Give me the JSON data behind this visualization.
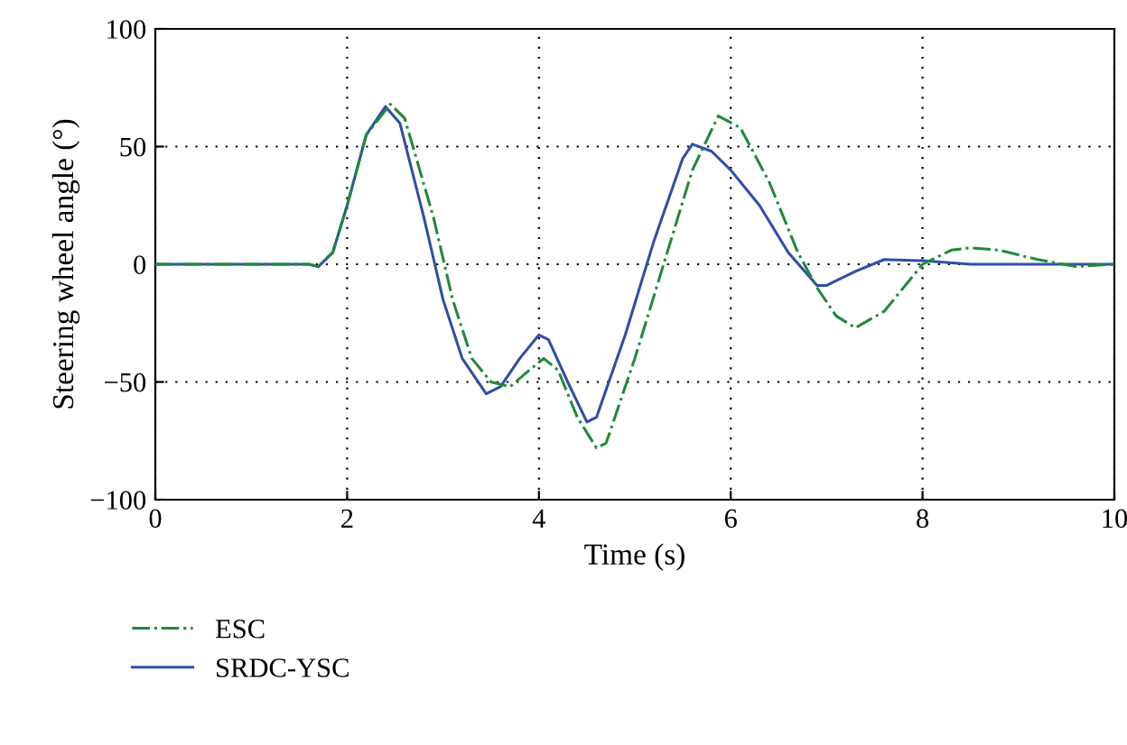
{
  "chart_data": {
    "type": "line",
    "xlabel": "Time (s)",
    "ylabel": "Steering wheel angle (°)",
    "xlim": [
      0,
      10
    ],
    "ylim": [
      -100,
      100
    ],
    "xticks": [
      0,
      2,
      4,
      6,
      8,
      10
    ],
    "yticks": [
      -100,
      -50,
      0,
      50,
      100
    ],
    "grid": true,
    "legend": "bottom left",
    "marker": "none",
    "series": [
      {
        "name": "ESC",
        "color": "#1f8a3a",
        "line_style": "dashdot",
        "x": [
          0,
          1.0,
          1.6,
          1.7,
          1.85,
          2.0,
          2.2,
          2.45,
          2.6,
          2.9,
          3.1,
          3.3,
          3.5,
          3.7,
          3.9,
          4.05,
          4.2,
          4.4,
          4.6,
          4.7,
          5.0,
          5.3,
          5.6,
          5.87,
          6.1,
          6.4,
          6.7,
          6.9,
          7.1,
          7.3,
          7.6,
          8.0,
          8.3,
          8.5,
          8.8,
          9.2,
          9.6,
          10
        ],
        "values": [
          0,
          0,
          0,
          -1,
          5,
          25,
          55,
          68,
          62,
          20,
          -15,
          -40,
          -50,
          -52,
          -45,
          -40,
          -45,
          -65,
          -78,
          -76,
          -40,
          0,
          40,
          63,
          58,
          35,
          5,
          -10,
          -22,
          -27,
          -20,
          0,
          6,
          7,
          6,
          2,
          -1,
          0
        ]
      },
      {
        "name": "SRDC-YSC",
        "color": "#2f4fa8",
        "line_style": "solid",
        "x": [
          0,
          1.0,
          1.6,
          1.7,
          1.85,
          2.0,
          2.2,
          2.4,
          2.55,
          2.8,
          3.0,
          3.2,
          3.45,
          3.6,
          3.8,
          4.0,
          4.1,
          4.3,
          4.5,
          4.6,
          4.9,
          5.2,
          5.5,
          5.6,
          5.8,
          6.0,
          6.3,
          6.6,
          6.9,
          7.0,
          7.3,
          7.6,
          8.0,
          8.5,
          10
        ],
        "values": [
          0,
          0,
          0,
          -1,
          5,
          25,
          55,
          67,
          60,
          20,
          -15,
          -40,
          -55,
          -52,
          -40,
          -30,
          -32,
          -50,
          -67,
          -65,
          -30,
          10,
          45,
          51,
          48,
          40,
          25,
          5,
          -9,
          -9,
          -3,
          2,
          1.5,
          0,
          0
        ]
      }
    ]
  }
}
